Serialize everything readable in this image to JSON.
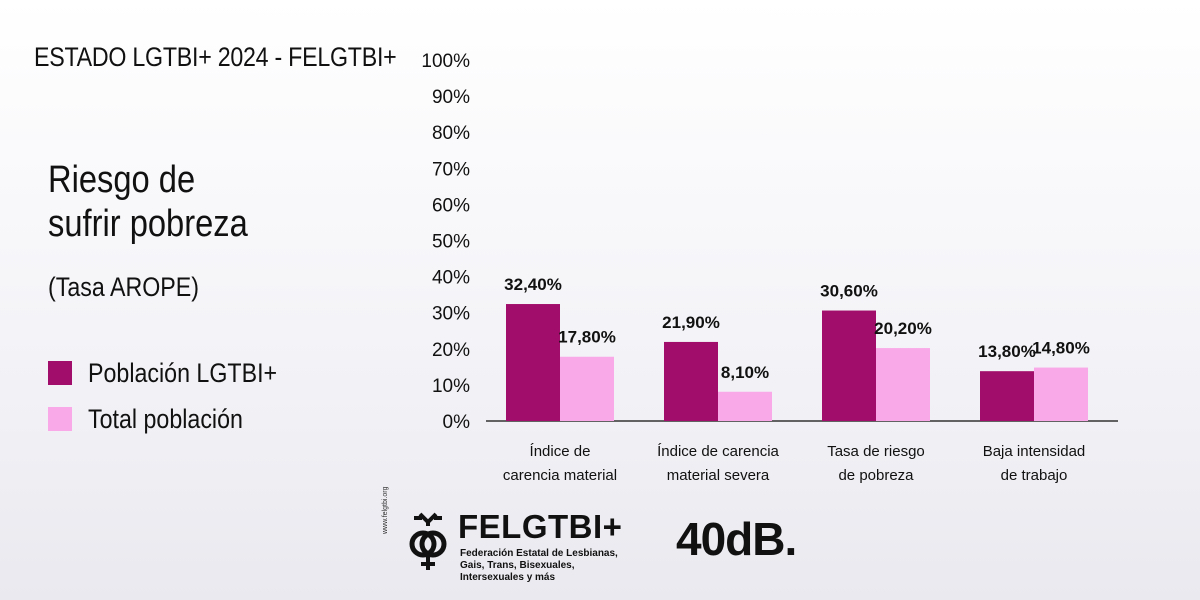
{
  "header": {
    "title": "ESTADO LGTBI+ 2024 - FELGTBI+"
  },
  "chart_data": {
    "type": "bar",
    "title_lines": [
      "Riesgo de",
      "sufrir pobreza"
    ],
    "subtitle": "(Tasa AROPE)",
    "categories": [
      [
        "Índice de",
        "carencia material"
      ],
      [
        "Índice de carencia",
        "material severa"
      ],
      [
        "Tasa de riesgo",
        "de pobreza"
      ],
      [
        "Baja intensidad",
        "de trabajo"
      ]
    ],
    "series": [
      {
        "name": "Población LGTBI+",
        "color": "#a10d6b",
        "values": [
          32.4,
          21.9,
          30.6,
          13.8
        ],
        "labels": [
          "32,40%",
          "21,90%",
          "30,60%",
          "13,80%"
        ]
      },
      {
        "name": "Total población",
        "color": "#f9a8e8",
        "values": [
          17.8,
          8.1,
          20.2,
          14.8
        ],
        "labels": [
          "17,80%",
          "8,10%",
          "20,20%",
          "14,80%"
        ]
      }
    ],
    "yticks": [
      "0%",
      "10%",
      "20%",
      "30%",
      "40%",
      "50%",
      "60%",
      "70%",
      "80%",
      "90%",
      "100%"
    ],
    "ylim": [
      0,
      100
    ],
    "grid": false,
    "legend_position": "left"
  },
  "footer": {
    "felgtbi_name": "FELGTBI+",
    "felgtbi_desc": "Federación Estatal de Lesbianas, Gais, Trans, Bisexuales, Intersexuales y más",
    "felgtbi_url": "www.felgtbi.org",
    "partner": "40dB."
  }
}
